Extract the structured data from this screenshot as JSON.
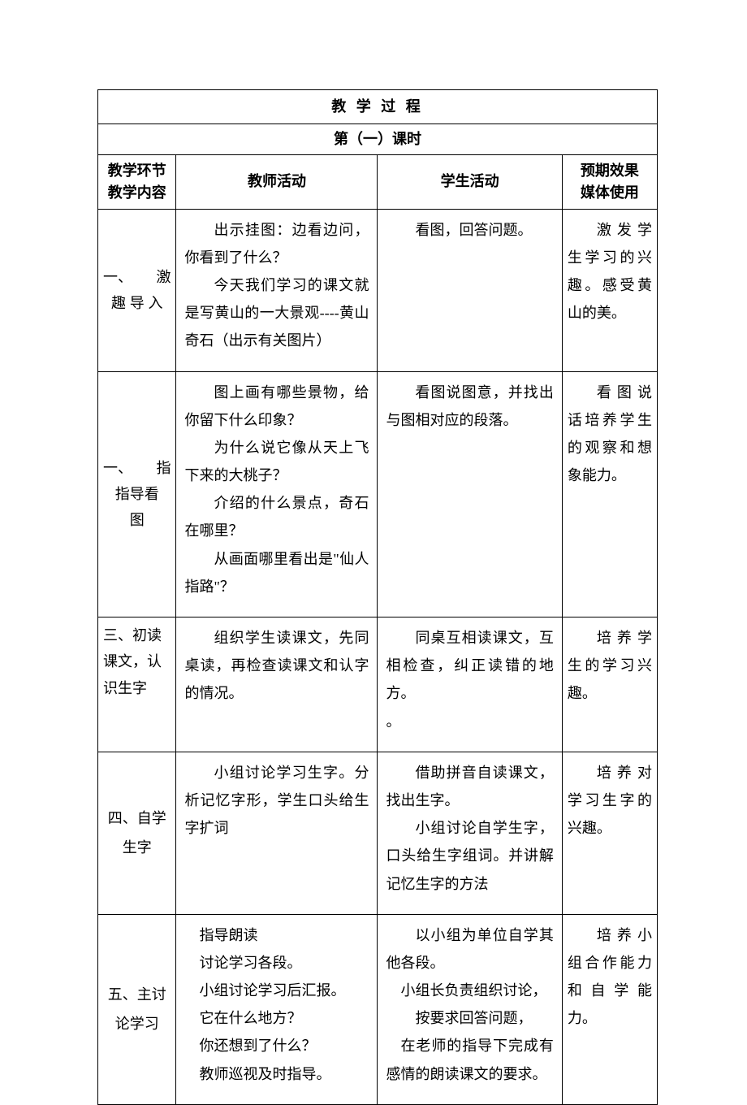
{
  "table": {
    "title": "教 学 过 程",
    "subtitle": "第（一）课时",
    "headers": {
      "col1_line1": "教学环节",
      "col1_line2": "教学内容",
      "col2": "教师活动",
      "col3": "学生活动",
      "col4_line1": "预期效果",
      "col4_line2": "媒体使用"
    },
    "rows": [
      {
        "section_num": "一、",
        "section_label": "激",
        "section_rest": "趣导入",
        "teacher_p1": "出示挂图：边看边问，你看到了什么？",
        "teacher_p2": "今天我们学习的课文就是写黄山的一大景观----黄山奇石（出示有关图片）",
        "student": "看图，回答问题。",
        "effect": "激发学生学习的兴趣。感受黄山的美。"
      },
      {
        "section_num": "一、",
        "section_label": "指",
        "section_rest": "指导看图",
        "teacher_p1": "图上画有哪些景物，给你留下什么印象？",
        "teacher_p2": "为什么说它像从天上飞下来的大桃子？",
        "teacher_p3": "介绍的什么景点，奇石在哪里？",
        "teacher_p4": "从画面哪里看出是\"仙人指路\"？",
        "student": "看图说图意，并找出与图相对应的段落。",
        "effect": "看图说话培养学生的观察和想象能力。"
      },
      {
        "section": "三、初读课文，认识生字",
        "teacher": "组织学生读课文，先同桌读，再检查读课文和认字的情况。",
        "student_p1": "同桌互相读课文，互相检查，纠正读错的地方。",
        "student_p2": "。",
        "effect": "培养学生的学习兴趣。"
      },
      {
        "section": "四、自学生字",
        "teacher": "小组讨论学习生字。分析记忆字形，学生口头给生字扩词",
        "student_p1": "借助拼音自读课文，找出生字。",
        "student_p2": "小组讨论自学生字，口头给生字组词。并讲解记忆生字的方法",
        "effect": "培养对学习生字的兴趣。"
      },
      {
        "section": "五、主讨论学习",
        "teacher_l1": "指导朗读",
        "teacher_l2": "讨论学习各段。",
        "teacher_l3": "小组讨论学习后汇报。",
        "teacher_l4": "它在什么地方？",
        "teacher_l5": "你还想到了什么？",
        "teacher_l6": "教师巡视及时指导。",
        "student_p1": "以小组为单位自学其他各段。",
        "student_p2": "小组长负责组织讨论，",
        "student_p3": "按要求回答问题，",
        "student_p4": "在老师的指导下完成有感情的朗读课文的要求。",
        "effect": "培养小组合作能力和自学能力。"
      }
    ]
  },
  "style": {
    "font_family": "SimSun",
    "font_size_pt": 14,
    "border_color": "#000000",
    "background_color": "#ffffff",
    "text_color": "#000000"
  }
}
